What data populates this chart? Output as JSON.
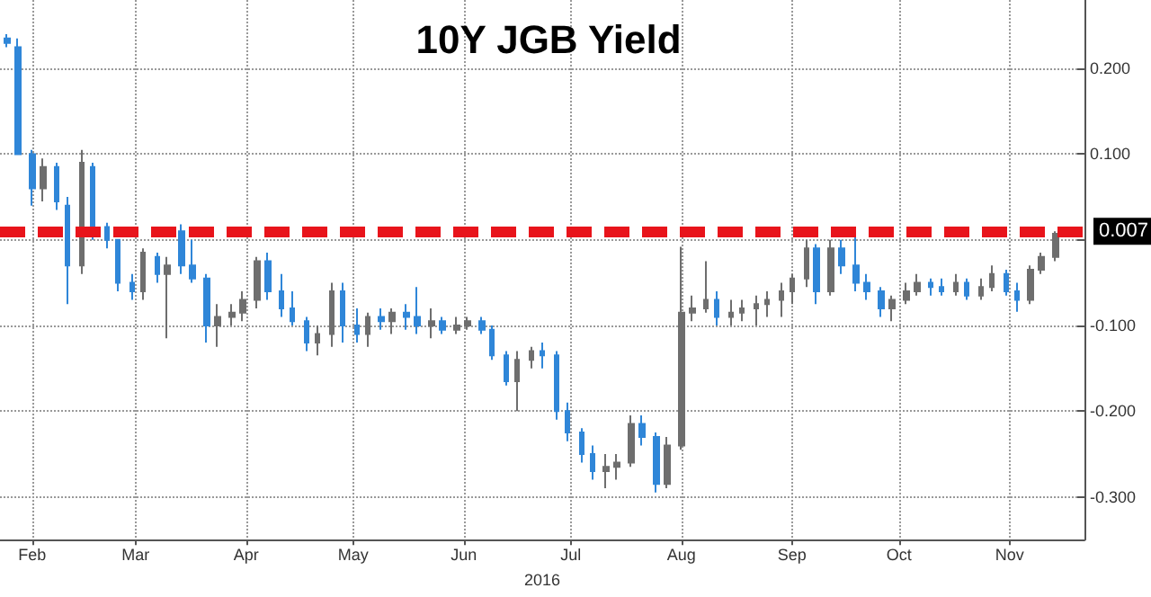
{
  "chart_data": {
    "type": "candlestick",
    "title": "10Y JGB Yield",
    "xlabel": "2016",
    "x": [
      "2016-01-25",
      "2016-01-28",
      "2016-02-01",
      "2016-02-04",
      "2016-02-08",
      "2016-02-11",
      "2016-02-15",
      "2016-02-18",
      "2016-02-22",
      "2016-02-25",
      "2016-02-29",
      "2016-03-03",
      "2016-03-07",
      "2016-03-10",
      "2016-03-14",
      "2016-03-17",
      "2016-03-21",
      "2016-03-24",
      "2016-03-28",
      "2016-03-31",
      "2016-04-04",
      "2016-04-07",
      "2016-04-11",
      "2016-04-14",
      "2016-04-18",
      "2016-04-21",
      "2016-04-25",
      "2016-04-28",
      "2016-05-02",
      "2016-05-05",
      "2016-05-09",
      "2016-05-12",
      "2016-05-16",
      "2016-05-19",
      "2016-05-23",
      "2016-05-26",
      "2016-05-30",
      "2016-06-02",
      "2016-06-06",
      "2016-06-09",
      "2016-06-13",
      "2016-06-16",
      "2016-06-20",
      "2016-06-23",
      "2016-06-27",
      "2016-06-30",
      "2016-07-04",
      "2016-07-07",
      "2016-07-11",
      "2016-07-14",
      "2016-07-18",
      "2016-07-21",
      "2016-07-25",
      "2016-07-28",
      "2016-08-01",
      "2016-08-04",
      "2016-08-08",
      "2016-08-11",
      "2016-08-15",
      "2016-08-18",
      "2016-08-22",
      "2016-08-25",
      "2016-08-29",
      "2016-09-01",
      "2016-09-05",
      "2016-09-08",
      "2016-09-12",
      "2016-09-15",
      "2016-09-19",
      "2016-09-22",
      "2016-09-26",
      "2016-09-29",
      "2016-10-03",
      "2016-10-06",
      "2016-10-10",
      "2016-10-13",
      "2016-10-17",
      "2016-10-20",
      "2016-10-24",
      "2016-10-27",
      "2016-10-31",
      "2016-11-03",
      "2016-11-07",
      "2016-11-10",
      "2016-11-14"
    ],
    "ohlc": [
      [
        0.235,
        0.24,
        0.225,
        0.23
      ],
      [
        0.225,
        0.235,
        0.1,
        0.1
      ],
      [
        0.1,
        0.105,
        0.04,
        0.06
      ],
      [
        0.06,
        0.095,
        0.045,
        0.085
      ],
      [
        0.085,
        0.09,
        0.035,
        0.045
      ],
      [
        0.04,
        0.05,
        -0.075,
        -0.03
      ],
      [
        -0.03,
        0.105,
        -0.04,
        0.09
      ],
      [
        0.085,
        0.09,
        0.0,
        0.015
      ],
      [
        0.015,
        0.02,
        -0.01,
        0.0
      ],
      [
        0.0,
        0.0,
        -0.06,
        -0.05
      ],
      [
        -0.05,
        -0.04,
        -0.07,
        -0.06
      ],
      [
        -0.06,
        -0.01,
        -0.07,
        -0.015
      ],
      [
        -0.02,
        -0.015,
        -0.05,
        -0.04
      ],
      [
        -0.04,
        -0.02,
        -0.115,
        -0.03
      ],
      [
        0.01,
        0.018,
        -0.04,
        -0.03
      ],
      [
        -0.03,
        0.0,
        -0.05,
        -0.045
      ],
      [
        -0.045,
        -0.04,
        -0.12,
        -0.1
      ],
      [
        -0.1,
        -0.075,
        -0.125,
        -0.09
      ],
      [
        -0.09,
        -0.075,
        -0.1,
        -0.085
      ],
      [
        -0.085,
        -0.06,
        -0.095,
        -0.07
      ],
      [
        -0.07,
        -0.02,
        -0.08,
        -0.025
      ],
      [
        -0.025,
        -0.015,
        -0.07,
        -0.06
      ],
      [
        -0.06,
        -0.04,
        -0.09,
        -0.08
      ],
      [
        -0.08,
        -0.06,
        -0.1,
        -0.095
      ],
      [
        -0.095,
        -0.09,
        -0.13,
        -0.12
      ],
      [
        -0.12,
        -0.1,
        -0.135,
        -0.11
      ],
      [
        -0.11,
        -0.05,
        -0.125,
        -0.06
      ],
      [
        -0.06,
        -0.05,
        -0.12,
        -0.1
      ],
      [
        -0.1,
        -0.08,
        -0.12,
        -0.11
      ],
      [
        -0.11,
        -0.085,
        -0.125,
        -0.09
      ],
      [
        -0.09,
        -0.08,
        -0.105,
        -0.095
      ],
      [
        -0.095,
        -0.08,
        -0.11,
        -0.085
      ],
      [
        -0.085,
        -0.075,
        -0.105,
        -0.09
      ],
      [
        -0.09,
        -0.055,
        -0.11,
        -0.1
      ],
      [
        -0.1,
        -0.08,
        -0.115,
        -0.095
      ],
      [
        -0.095,
        -0.09,
        -0.11,
        -0.105
      ],
      [
        -0.105,
        -0.09,
        -0.11,
        -0.1
      ],
      [
        -0.1,
        -0.09,
        -0.105,
        -0.095
      ],
      [
        -0.095,
        -0.09,
        -0.11,
        -0.105
      ],
      [
        -0.105,
        -0.1,
        -0.14,
        -0.135
      ],
      [
        -0.135,
        -0.13,
        -0.17,
        -0.165
      ],
      [
        -0.165,
        -0.13,
        -0.2,
        -0.14
      ],
      [
        -0.14,
        -0.125,
        -0.15,
        -0.13
      ],
      [
        -0.13,
        -0.12,
        -0.15,
        -0.135
      ],
      [
        -0.135,
        -0.13,
        -0.21,
        -0.2
      ],
      [
        -0.2,
        -0.19,
        -0.235,
        -0.225
      ],
      [
        -0.225,
        -0.22,
        -0.26,
        -0.25
      ],
      [
        -0.25,
        -0.24,
        -0.28,
        -0.27
      ],
      [
        -0.27,
        -0.25,
        -0.29,
        -0.265
      ],
      [
        -0.265,
        -0.25,
        -0.28,
        -0.26
      ],
      [
        -0.26,
        -0.205,
        -0.265,
        -0.215
      ],
      [
        -0.215,
        -0.205,
        -0.24,
        -0.23
      ],
      [
        -0.23,
        -0.225,
        -0.295,
        -0.285
      ],
      [
        -0.285,
        -0.23,
        -0.29,
        -0.24
      ],
      [
        -0.24,
        -0.008,
        -0.245,
        -0.085
      ],
      [
        -0.085,
        -0.065,
        -0.095,
        -0.08
      ],
      [
        -0.08,
        -0.025,
        -0.085,
        -0.07
      ],
      [
        -0.07,
        -0.06,
        -0.1,
        -0.09
      ],
      [
        -0.09,
        -0.07,
        -0.1,
        -0.085
      ],
      [
        -0.085,
        -0.07,
        -0.095,
        -0.08
      ],
      [
        -0.08,
        -0.065,
        -0.1,
        -0.075
      ],
      [
        -0.075,
        -0.06,
        -0.09,
        -0.07
      ],
      [
        -0.07,
        -0.05,
        -0.09,
        -0.06
      ],
      [
        -0.06,
        -0.04,
        -0.075,
        -0.045
      ],
      [
        -0.045,
        0.0,
        -0.055,
        -0.01
      ],
      [
        -0.01,
        -0.005,
        -0.075,
        -0.06
      ],
      [
        -0.06,
        0.0,
        -0.065,
        -0.01
      ],
      [
        -0.01,
        0.0,
        -0.04,
        -0.03
      ],
      [
        -0.03,
        0.01,
        -0.06,
        -0.05
      ],
      [
        -0.05,
        -0.04,
        -0.07,
        -0.06
      ],
      [
        -0.06,
        -0.055,
        -0.09,
        -0.08
      ],
      [
        -0.08,
        -0.065,
        -0.095,
        -0.07
      ],
      [
        -0.07,
        -0.05,
        -0.075,
        -0.06
      ],
      [
        -0.06,
        -0.04,
        -0.065,
        -0.05
      ],
      [
        -0.05,
        -0.045,
        -0.065,
        -0.055
      ],
      [
        -0.055,
        -0.045,
        -0.065,
        -0.06
      ],
      [
        -0.06,
        -0.04,
        -0.065,
        -0.05
      ],
      [
        -0.05,
        -0.045,
        -0.07,
        -0.065
      ],
      [
        -0.065,
        -0.045,
        -0.07,
        -0.055
      ],
      [
        -0.055,
        -0.03,
        -0.06,
        -0.04
      ],
      [
        -0.04,
        -0.035,
        -0.065,
        -0.06
      ],
      [
        -0.06,
        -0.05,
        -0.084,
        -0.07
      ],
      [
        -0.07,
        -0.03,
        -0.075,
        -0.035
      ],
      [
        -0.035,
        -0.015,
        -0.04,
        -0.02
      ],
      [
        -0.02,
        0.01,
        -0.025,
        0.007
      ]
    ],
    "colors": [
      "#2f86d8",
      "#2f86d8",
      "#2f86d8",
      "#6e6e6e",
      "#2f86d8",
      "#2f86d8",
      "#6e6e6e",
      "#2f86d8",
      "#2f86d8",
      "#2f86d8",
      "#2f86d8",
      "#6e6e6e",
      "#2f86d8",
      "#6e6e6e",
      "#2f86d8",
      "#2f86d8",
      "#2f86d8",
      "#6e6e6e",
      "#6e6e6e",
      "#6e6e6e",
      "#6e6e6e",
      "#2f86d8",
      "#2f86d8",
      "#2f86d8",
      "#2f86d8",
      "#6e6e6e",
      "#6e6e6e",
      "#2f86d8",
      "#2f86d8",
      "#6e6e6e",
      "#2f86d8",
      "#6e6e6e",
      "#2f86d8",
      "#2f86d8",
      "#6e6e6e",
      "#2f86d8",
      "#6e6e6e",
      "#6e6e6e",
      "#2f86d8",
      "#2f86d8",
      "#2f86d8",
      "#6e6e6e",
      "#6e6e6e",
      "#2f86d8",
      "#2f86d8",
      "#2f86d8",
      "#2f86d8",
      "#2f86d8",
      "#6e6e6e",
      "#6e6e6e",
      "#6e6e6e",
      "#2f86d8",
      "#2f86d8",
      "#6e6e6e",
      "#6e6e6e",
      "#6e6e6e",
      "#6e6e6e",
      "#2f86d8",
      "#6e6e6e",
      "#6e6e6e",
      "#6e6e6e",
      "#6e6e6e",
      "#6e6e6e",
      "#6e6e6e",
      "#6e6e6e",
      "#2f86d8",
      "#6e6e6e",
      "#2f86d8",
      "#2f86d8",
      "#2f86d8",
      "#2f86d8",
      "#6e6e6e",
      "#6e6e6e",
      "#6e6e6e",
      "#2f86d8",
      "#2f86d8",
      "#6e6e6e",
      "#2f86d8",
      "#6e6e6e",
      "#6e6e6e",
      "#2f86d8",
      "#2f86d8",
      "#6e6e6e",
      "#6e6e6e",
      "#6e6e6e"
    ],
    "xlim": [
      "2016-01-23",
      "2016-11-22"
    ],
    "xticks": [
      {
        "value": "2016-02-01",
        "label": "Feb"
      },
      {
        "value": "2016-03-01",
        "label": "Mar"
      },
      {
        "value": "2016-04-01",
        "label": "Apr"
      },
      {
        "value": "2016-05-01",
        "label": "May"
      },
      {
        "value": "2016-06-01",
        "label": "Jun"
      },
      {
        "value": "2016-07-01",
        "label": "Jul"
      },
      {
        "value": "2016-08-01",
        "label": "Aug"
      },
      {
        "value": "2016-09-01",
        "label": "Sep"
      },
      {
        "value": "2016-10-01",
        "label": "Oct"
      },
      {
        "value": "2016-11-01",
        "label": "Nov"
      }
    ],
    "ylim": [
      -0.35,
      0.28
    ],
    "yticks": [
      {
        "value": 0.2,
        "label": "0.200"
      },
      {
        "value": 0.1,
        "label": "0.100"
      },
      {
        "value": 0,
        "label": null
      },
      {
        "value": -0.1,
        "label": "-0.100"
      },
      {
        "value": -0.2,
        "label": "-0.200"
      },
      {
        "value": -0.3,
        "label": "-0.300"
      }
    ],
    "ref_lines": [
      {
        "axis": "y",
        "value": 0.007,
        "label": "0.007",
        "color": "#e8141b",
        "line_style": "dashed"
      }
    ],
    "grid": true
  }
}
